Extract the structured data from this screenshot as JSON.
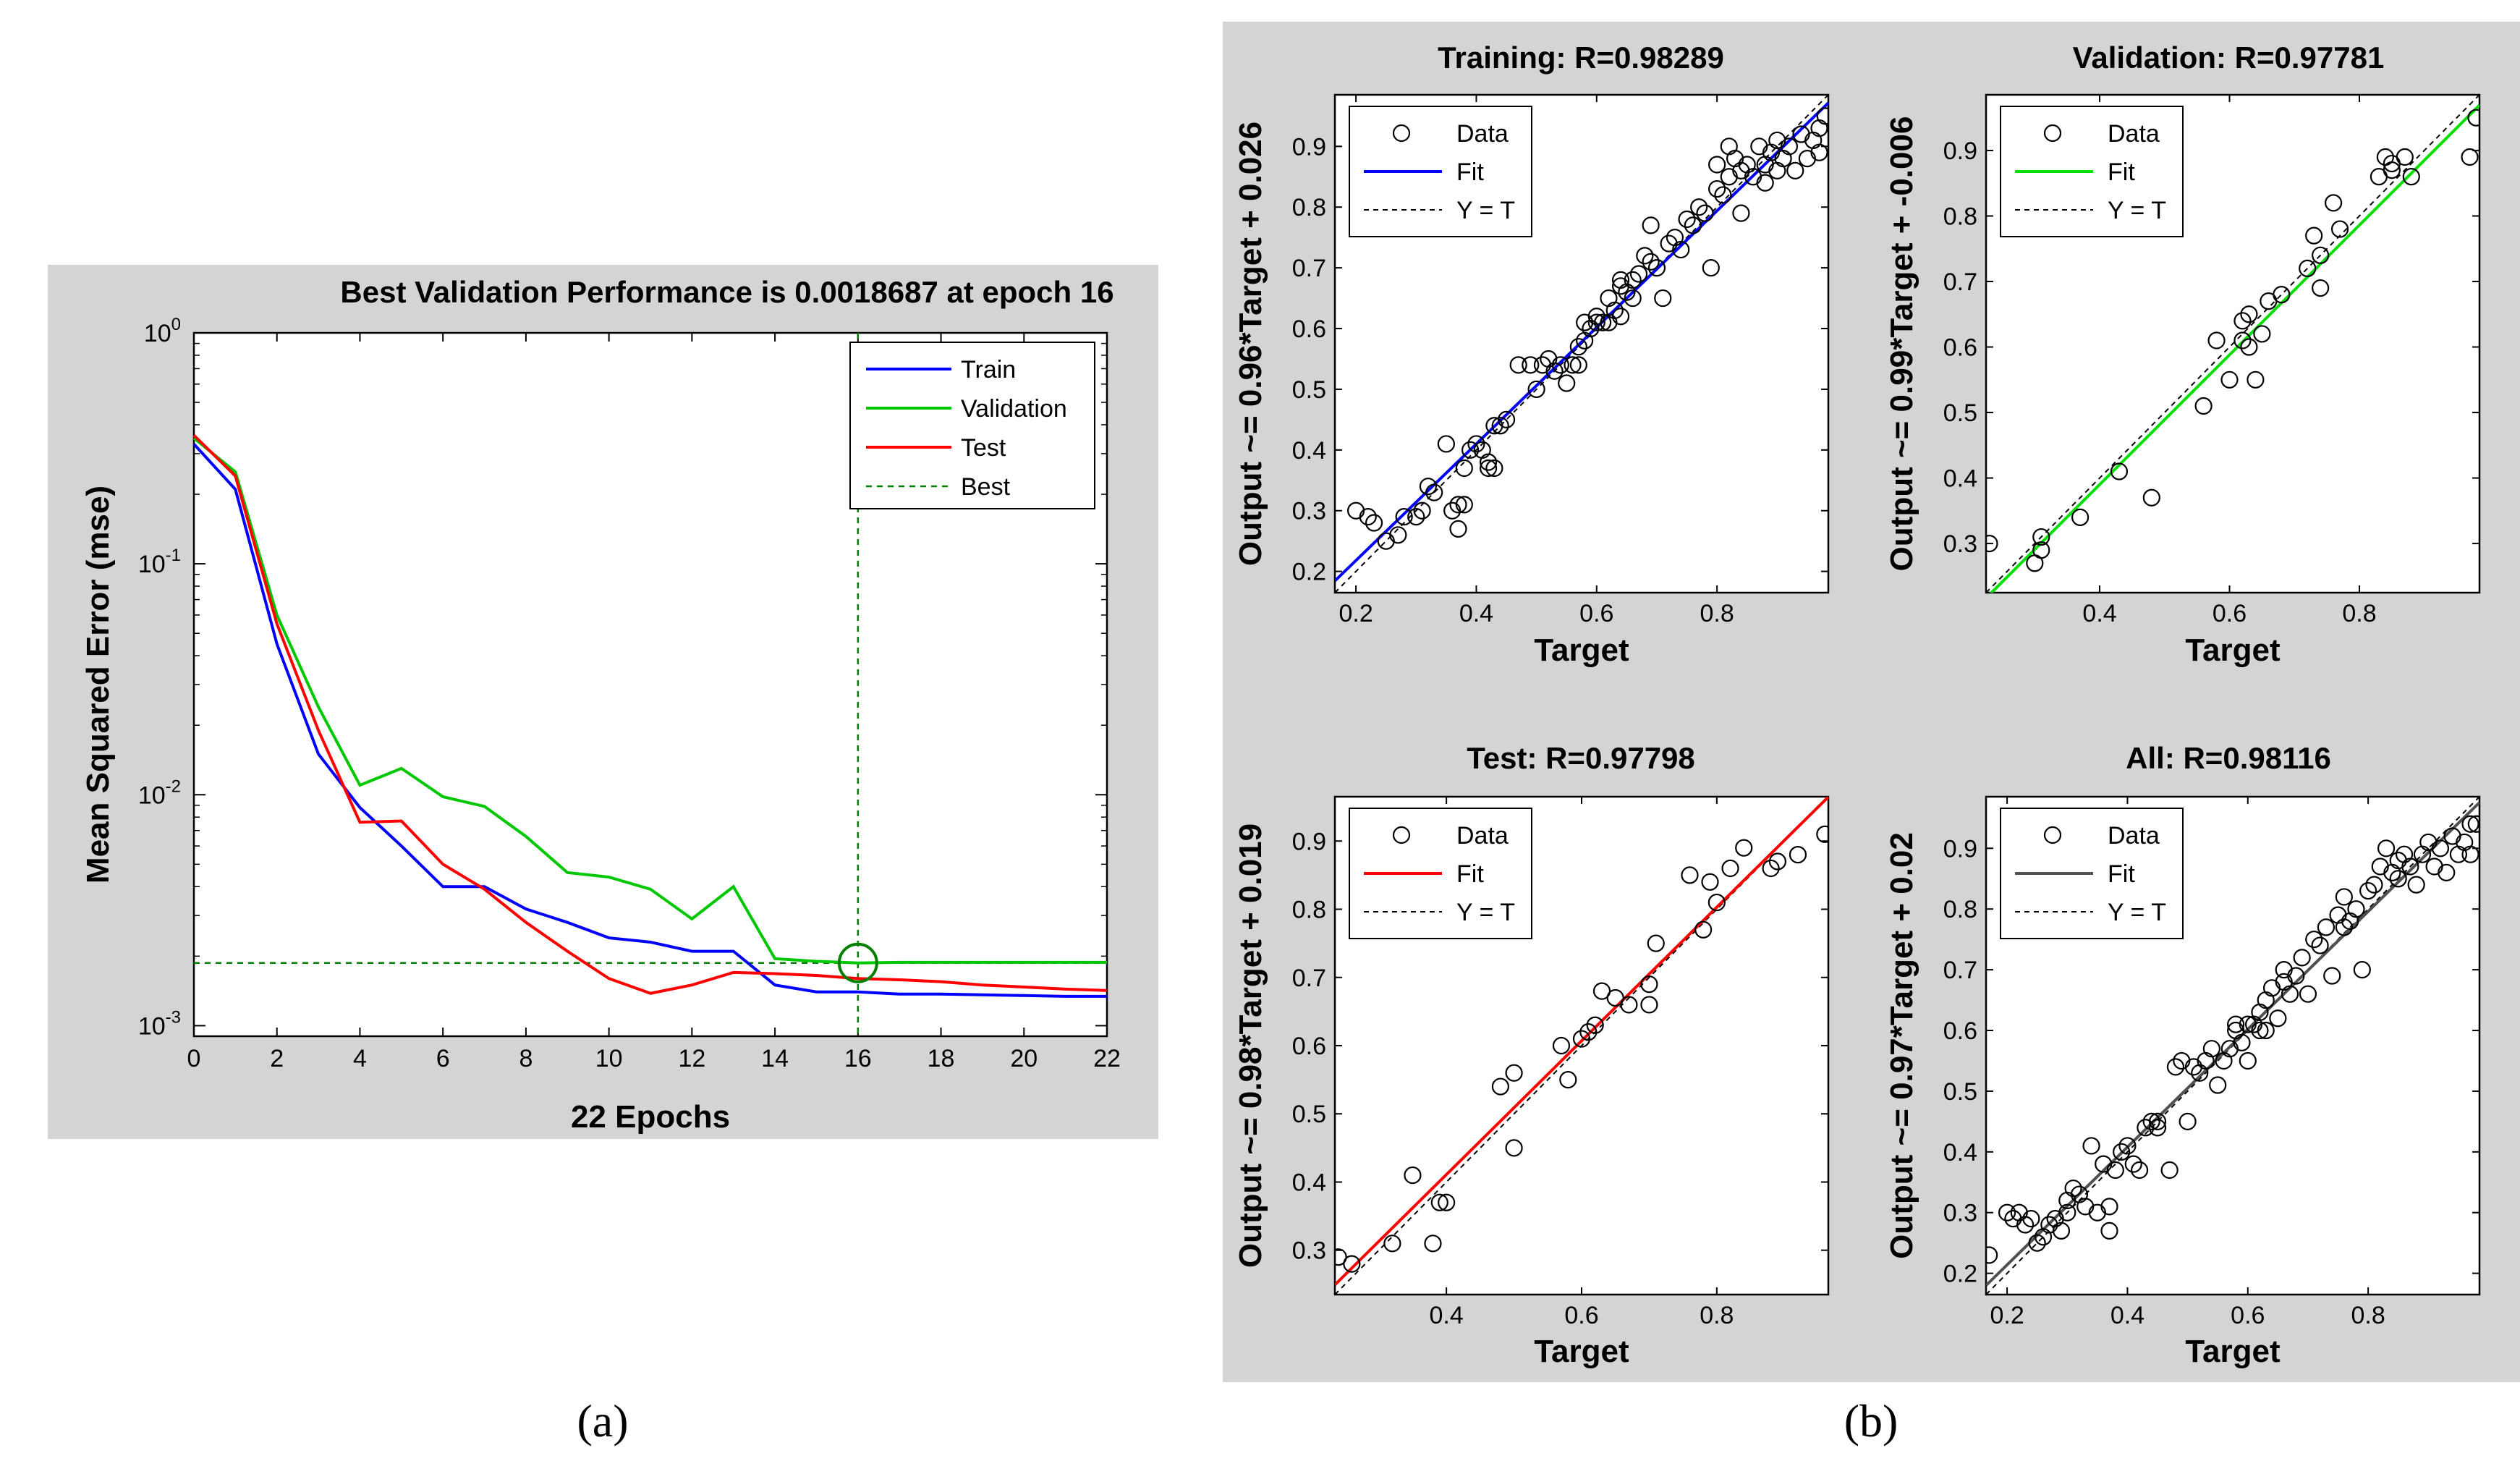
{
  "captions": {
    "a": "(a)",
    "b": "(b)"
  },
  "chart_data": [
    {
      "id": "a",
      "type": "line",
      "title": "Best Validation Performance is 0.0018687 at epoch 16",
      "xlabel": "22 Epochs",
      "ylabel": "Mean Squared Error  (mse)",
      "xlim": [
        0,
        22
      ],
      "ylim": [
        0.0009,
        1
      ],
      "yscale": "log",
      "xticks": [
        0,
        2,
        4,
        6,
        8,
        10,
        12,
        14,
        16,
        18,
        20,
        22
      ],
      "yticks": [
        {
          "value": 1,
          "base": "10",
          "exp": "0"
        },
        {
          "value": 0.1,
          "base": "10",
          "exp": "-1"
        },
        {
          "value": 0.01,
          "base": "10",
          "exp": "-2"
        },
        {
          "value": 0.001,
          "base": "10",
          "exp": "-3"
        }
      ],
      "legend_position": "top-right",
      "best": {
        "epoch": 16,
        "value": 0.0018687,
        "label": "Best",
        "color": "#008000"
      },
      "series": [
        {
          "name": "Train",
          "color": "#0000ff",
          "x": [
            0,
            1,
            2,
            3,
            4,
            5,
            6,
            7,
            8,
            9,
            10,
            11,
            12,
            13,
            14,
            15,
            16,
            17,
            18,
            19,
            20,
            21,
            22
          ],
          "values": [
            0.33,
            0.21,
            0.045,
            0.015,
            0.0088,
            0.006,
            0.004,
            0.004,
            0.0032,
            0.0028,
            0.0024,
            0.0023,
            0.0021,
            0.0021,
            0.0015,
            0.0014,
            0.0014,
            0.00137,
            0.00137,
            0.00136,
            0.00135,
            0.00134,
            0.00134
          ]
        },
        {
          "name": "Validation",
          "color": "#00c800",
          "x": [
            0,
            1,
            2,
            3,
            4,
            5,
            6,
            7,
            8,
            9,
            10,
            11,
            12,
            13,
            14,
            15,
            16,
            17,
            18,
            19,
            20,
            21,
            22
          ],
          "values": [
            0.35,
            0.25,
            0.06,
            0.024,
            0.011,
            0.013,
            0.0098,
            0.0089,
            0.0066,
            0.0046,
            0.0044,
            0.0039,
            0.0029,
            0.004,
            0.00195,
            0.0019,
            0.0018687,
            0.00188,
            0.00188,
            0.00188,
            0.00188,
            0.00188,
            0.00188
          ]
        },
        {
          "name": "Test",
          "color": "#ff0000",
          "x": [
            0,
            1,
            2,
            3,
            4,
            5,
            6,
            7,
            8,
            9,
            10,
            11,
            12,
            13,
            14,
            15,
            16,
            17,
            18,
            19,
            20,
            21,
            22
          ],
          "values": [
            0.36,
            0.24,
            0.055,
            0.019,
            0.0076,
            0.0077,
            0.005,
            0.0039,
            0.0028,
            0.0021,
            0.0016,
            0.00138,
            0.0015,
            0.0017,
            0.00168,
            0.00165,
            0.0016,
            0.00158,
            0.00155,
            0.0015,
            0.00147,
            0.00144,
            0.00142
          ]
        }
      ]
    },
    {
      "id": "b1",
      "type": "scatter",
      "title": "Training: R=0.98289",
      "xlabel": "Target",
      "ylabel": "Output ~= 0.96*Target + 0.026",
      "xlim": [
        0.165,
        0.985
      ],
      "ylim": [
        0.165,
        0.985
      ],
      "xticks": [
        0.2,
        0.4,
        0.6,
        0.8
      ],
      "yticks": [
        0.2,
        0.3,
        0.4,
        0.5,
        0.6,
        0.7,
        0.8,
        0.9
      ],
      "fit": {
        "slope": 0.96,
        "intercept": 0.026,
        "color": "#0000ff"
      },
      "legend": [
        "Data",
        "Fit",
        "Y = T"
      ],
      "legend_position": "top-left",
      "points": [
        [
          0.2,
          0.3
        ],
        [
          0.22,
          0.29
        ],
        [
          0.23,
          0.28
        ],
        [
          0.25,
          0.25
        ],
        [
          0.27,
          0.26
        ],
        [
          0.28,
          0.29
        ],
        [
          0.3,
          0.29
        ],
        [
          0.31,
          0.3
        ],
        [
          0.32,
          0.34
        ],
        [
          0.33,
          0.33
        ],
        [
          0.35,
          0.41
        ],
        [
          0.36,
          0.3
        ],
        [
          0.37,
          0.31
        ],
        [
          0.37,
          0.27
        ],
        [
          0.38,
          0.31
        ],
        [
          0.38,
          0.37
        ],
        [
          0.39,
          0.4
        ],
        [
          0.4,
          0.41
        ],
        [
          0.41,
          0.4
        ],
        [
          0.42,
          0.38
        ],
        [
          0.42,
          0.37
        ],
        [
          0.43,
          0.37
        ],
        [
          0.43,
          0.44
        ],
        [
          0.44,
          0.44
        ],
        [
          0.45,
          0.45
        ],
        [
          0.49,
          0.54
        ],
        [
          0.51,
          0.54
        ],
        [
          0.52,
          0.55
        ],
        [
          0.53,
          0.53
        ],
        [
          0.54,
          0.54
        ],
        [
          0.55,
          0.51
        ],
        [
          0.56,
          0.54
        ],
        [
          0.57,
          0.54
        ],
        [
          0.57,
          0.57
        ],
        [
          0.58,
          0.58
        ],
        [
          0.59,
          0.6
        ],
        [
          0.6,
          0.61
        ],
        [
          0.6,
          0.62
        ],
        [
          0.61,
          0.61
        ],
        [
          0.62,
          0.61
        ],
        [
          0.62,
          0.65
        ],
        [
          0.63,
          0.63
        ],
        [
          0.64,
          0.67
        ],
        [
          0.64,
          0.68
        ],
        [
          0.65,
          0.66
        ],
        [
          0.66,
          0.68
        ],
        [
          0.66,
          0.65
        ],
        [
          0.67,
          0.69
        ],
        [
          0.68,
          0.72
        ],
        [
          0.69,
          0.71
        ],
        [
          0.7,
          0.7
        ],
        [
          0.71,
          0.65
        ],
        [
          0.72,
          0.74
        ],
        [
          0.73,
          0.75
        ],
        [
          0.75,
          0.78
        ],
        [
          0.76,
          0.77
        ],
        [
          0.77,
          0.8
        ],
        [
          0.78,
          0.79
        ],
        [
          0.79,
          0.7
        ],
        [
          0.8,
          0.83
        ],
        [
          0.8,
          0.87
        ],
        [
          0.81,
          0.82
        ],
        [
          0.82,
          0.85
        ],
        [
          0.82,
          0.9
        ],
        [
          0.83,
          0.88
        ],
        [
          0.84,
          0.86
        ],
        [
          0.84,
          0.79
        ],
        [
          0.85,
          0.87
        ],
        [
          0.86,
          0.85
        ],
        [
          0.87,
          0.9
        ],
        [
          0.88,
          0.87
        ],
        [
          0.88,
          0.84
        ],
        [
          0.89,
          0.89
        ],
        [
          0.9,
          0.91
        ],
        [
          0.9,
          0.86
        ],
        [
          0.91,
          0.88
        ],
        [
          0.92,
          0.9
        ],
        [
          0.93,
          0.86
        ],
        [
          0.94,
          0.92
        ],
        [
          0.95,
          0.88
        ],
        [
          0.96,
          0.91
        ],
        [
          0.97,
          0.93
        ],
        [
          0.98,
          0.95
        ],
        [
          0.97,
          0.89
        ],
        [
          0.69,
          0.77
        ],
        [
          0.74,
          0.73
        ],
        [
          0.5,
          0.5
        ],
        [
          0.47,
          0.54
        ],
        [
          0.64,
          0.62
        ],
        [
          0.58,
          0.61
        ]
      ]
    },
    {
      "id": "b2",
      "type": "scatter",
      "title": "Validation: R=0.97781",
      "xlabel": "Target",
      "ylabel": "Output ~= 0.99*Target + -0.006",
      "xlim": [
        0.225,
        0.985
      ],
      "ylim": [
        0.225,
        0.985
      ],
      "xticks": [
        0.4,
        0.6,
        0.8
      ],
      "yticks": [
        0.3,
        0.4,
        0.5,
        0.6,
        0.7,
        0.8,
        0.9
      ],
      "fit": {
        "slope": 0.99,
        "intercept": -0.006,
        "color": "#00e000"
      },
      "legend": [
        "Data",
        "Fit",
        "Y = T"
      ],
      "legend_position": "top-left",
      "points": [
        [
          0.23,
          0.3
        ],
        [
          0.3,
          0.27
        ],
        [
          0.31,
          0.29
        ],
        [
          0.31,
          0.31
        ],
        [
          0.37,
          0.34
        ],
        [
          0.43,
          0.41
        ],
        [
          0.48,
          0.37
        ],
        [
          0.56,
          0.51
        ],
        [
          0.58,
          0.61
        ],
        [
          0.6,
          0.55
        ],
        [
          0.62,
          0.61
        ],
        [
          0.62,
          0.64
        ],
        [
          0.63,
          0.65
        ],
        [
          0.63,
          0.6
        ],
        [
          0.64,
          0.55
        ],
        [
          0.65,
          0.62
        ],
        [
          0.66,
          0.67
        ],
        [
          0.68,
          0.68
        ],
        [
          0.72,
          0.72
        ],
        [
          0.73,
          0.77
        ],
        [
          0.74,
          0.69
        ],
        [
          0.74,
          0.74
        ],
        [
          0.76,
          0.82
        ],
        [
          0.77,
          0.78
        ],
        [
          0.83,
          0.86
        ],
        [
          0.84,
          0.89
        ],
        [
          0.85,
          0.87
        ],
        [
          0.85,
          0.88
        ],
        [
          0.87,
          0.89
        ],
        [
          0.88,
          0.86
        ],
        [
          0.97,
          0.89
        ],
        [
          0.98,
          0.95
        ]
      ]
    },
    {
      "id": "b3",
      "type": "scatter",
      "title": "Test: R=0.97798",
      "xlabel": "Target",
      "ylabel": "Output ~= 0.98*Target + 0.019",
      "xlim": [
        0.235,
        0.965
      ],
      "ylim": [
        0.235,
        0.965
      ],
      "xticks": [
        0.4,
        0.6,
        0.8
      ],
      "yticks": [
        0.3,
        0.4,
        0.5,
        0.6,
        0.7,
        0.8,
        0.9
      ],
      "fit": {
        "slope": 0.98,
        "intercept": 0.019,
        "color": "#ff0000"
      },
      "legend": [
        "Data",
        "Fit",
        "Y = T"
      ],
      "legend_position": "top-left",
      "points": [
        [
          0.24,
          0.29
        ],
        [
          0.26,
          0.28
        ],
        [
          0.32,
          0.31
        ],
        [
          0.35,
          0.41
        ],
        [
          0.38,
          0.31
        ],
        [
          0.39,
          0.37
        ],
        [
          0.4,
          0.37
        ],
        [
          0.48,
          0.54
        ],
        [
          0.5,
          0.56
        ],
        [
          0.5,
          0.45
        ],
        [
          0.57,
          0.6
        ],
        [
          0.58,
          0.55
        ],
        [
          0.6,
          0.61
        ],
        [
          0.61,
          0.62
        ],
        [
          0.62,
          0.63
        ],
        [
          0.63,
          0.68
        ],
        [
          0.65,
          0.67
        ],
        [
          0.67,
          0.66
        ],
        [
          0.7,
          0.66
        ],
        [
          0.7,
          0.69
        ],
        [
          0.71,
          0.75
        ],
        [
          0.76,
          0.85
        ],
        [
          0.78,
          0.77
        ],
        [
          0.79,
          0.84
        ],
        [
          0.8,
          0.81
        ],
        [
          0.82,
          0.86
        ],
        [
          0.84,
          0.89
        ],
        [
          0.88,
          0.86
        ],
        [
          0.89,
          0.87
        ],
        [
          0.92,
          0.88
        ],
        [
          0.96,
          0.91
        ]
      ]
    },
    {
      "id": "b4",
      "type": "scatter",
      "title": "All: R=0.98116",
      "xlabel": "Target",
      "ylabel": "Output ~= 0.97*Target + 0.02",
      "xlim": [
        0.165,
        0.985
      ],
      "ylim": [
        0.165,
        0.985
      ],
      "xticks": [
        0.2,
        0.4,
        0.6,
        0.8
      ],
      "yticks": [
        0.2,
        0.3,
        0.4,
        0.5,
        0.6,
        0.7,
        0.8,
        0.9
      ],
      "fit": {
        "slope": 0.97,
        "intercept": 0.02,
        "color": "#505050"
      },
      "legend": [
        "Data",
        "Fit",
        "Y = T"
      ],
      "legend_position": "top-left",
      "points": [
        [
          0.17,
          0.23
        ],
        [
          0.2,
          0.3
        ],
        [
          0.21,
          0.29
        ],
        [
          0.22,
          0.3
        ],
        [
          0.23,
          0.28
        ],
        [
          0.24,
          0.29
        ],
        [
          0.25,
          0.25
        ],
        [
          0.26,
          0.26
        ],
        [
          0.27,
          0.28
        ],
        [
          0.28,
          0.29
        ],
        [
          0.29,
          0.27
        ],
        [
          0.3,
          0.3
        ],
        [
          0.31,
          0.34
        ],
        [
          0.32,
          0.33
        ],
        [
          0.33,
          0.31
        ],
        [
          0.34,
          0.41
        ],
        [
          0.35,
          0.3
        ],
        [
          0.36,
          0.38
        ],
        [
          0.37,
          0.27
        ],
        [
          0.37,
          0.31
        ],
        [
          0.38,
          0.37
        ],
        [
          0.39,
          0.4
        ],
        [
          0.4,
          0.41
        ],
        [
          0.41,
          0.38
        ],
        [
          0.42,
          0.37
        ],
        [
          0.43,
          0.44
        ],
        [
          0.44,
          0.45
        ],
        [
          0.45,
          0.45
        ],
        [
          0.47,
          0.37
        ],
        [
          0.48,
          0.54
        ],
        [
          0.49,
          0.55
        ],
        [
          0.5,
          0.45
        ],
        [
          0.51,
          0.54
        ],
        [
          0.52,
          0.53
        ],
        [
          0.53,
          0.55
        ],
        [
          0.54,
          0.57
        ],
        [
          0.55,
          0.51
        ],
        [
          0.56,
          0.55
        ],
        [
          0.57,
          0.57
        ],
        [
          0.58,
          0.6
        ],
        [
          0.59,
          0.58
        ],
        [
          0.6,
          0.61
        ],
        [
          0.6,
          0.55
        ],
        [
          0.61,
          0.61
        ],
        [
          0.62,
          0.63
        ],
        [
          0.63,
          0.65
        ],
        [
          0.63,
          0.6
        ],
        [
          0.64,
          0.67
        ],
        [
          0.65,
          0.62
        ],
        [
          0.66,
          0.68
        ],
        [
          0.67,
          0.66
        ],
        [
          0.68,
          0.69
        ],
        [
          0.69,
          0.72
        ],
        [
          0.7,
          0.66
        ],
        [
          0.71,
          0.75
        ],
        [
          0.72,
          0.74
        ],
        [
          0.73,
          0.77
        ],
        [
          0.74,
          0.69
        ],
        [
          0.75,
          0.79
        ],
        [
          0.76,
          0.82
        ],
        [
          0.77,
          0.78
        ],
        [
          0.78,
          0.8
        ],
        [
          0.79,
          0.7
        ],
        [
          0.8,
          0.83
        ],
        [
          0.81,
          0.84
        ],
        [
          0.82,
          0.87
        ],
        [
          0.83,
          0.9
        ],
        [
          0.84,
          0.86
        ],
        [
          0.85,
          0.88
        ],
        [
          0.86,
          0.89
        ],
        [
          0.87,
          0.87
        ],
        [
          0.88,
          0.84
        ],
        [
          0.89,
          0.89
        ],
        [
          0.9,
          0.91
        ],
        [
          0.91,
          0.87
        ],
        [
          0.92,
          0.9
        ],
        [
          0.93,
          0.86
        ],
        [
          0.94,
          0.92
        ],
        [
          0.95,
          0.89
        ],
        [
          0.96,
          0.91
        ],
        [
          0.97,
          0.94
        ],
        [
          0.98,
          0.94
        ],
        [
          0.97,
          0.89
        ],
        [
          0.76,
          0.77
        ],
        [
          0.66,
          0.7
        ],
        [
          0.58,
          0.61
        ],
        [
          0.45,
          0.44
        ],
        [
          0.3,
          0.32
        ],
        [
          0.62,
          0.6
        ],
        [
          0.85,
          0.85
        ]
      ]
    }
  ]
}
